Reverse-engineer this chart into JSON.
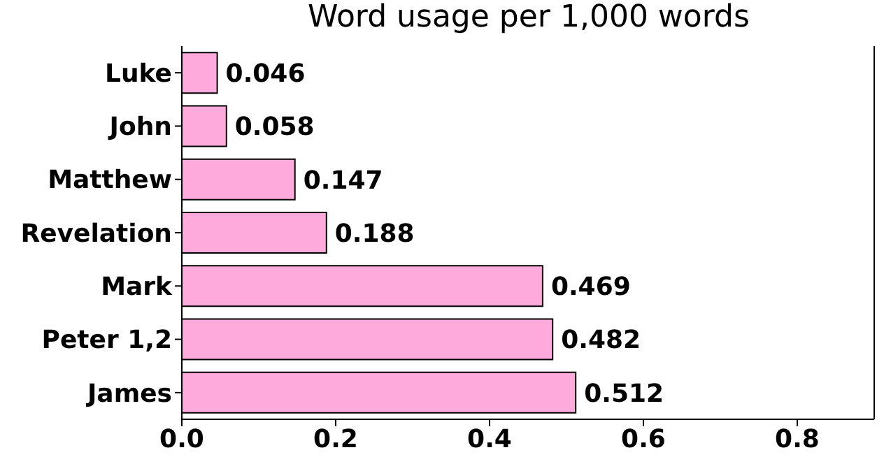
{
  "chart_data": {
    "type": "bar",
    "orientation": "horizontal",
    "title": "Word usage per 1,000 words",
    "categories": [
      "Luke",
      "John",
      "Matthew",
      "Revelation",
      "Mark",
      "Peter 1,2",
      "James"
    ],
    "values": [
      0.046,
      0.058,
      0.147,
      0.188,
      0.469,
      0.482,
      0.512
    ],
    "color": "#ffaadd",
    "xlim": [
      0,
      0.9
    ],
    "xticks": [
      {
        "value": 0,
        "label": "0.0"
      },
      0.2,
      0.4,
      0.6,
      0.8
    ],
    "data_labels": true,
    "grid": false,
    "legend": false
  }
}
